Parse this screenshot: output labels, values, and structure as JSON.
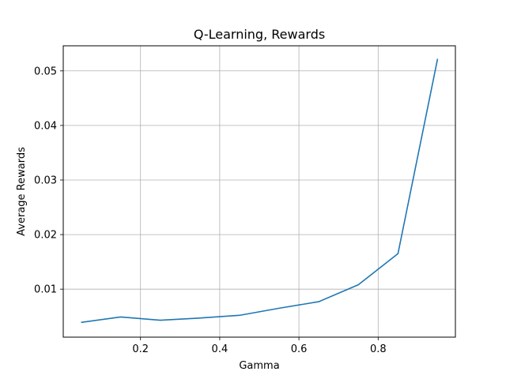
{
  "chart_data": {
    "type": "line",
    "title": "Q-Learning, Rewards",
    "xlabel": "Gamma",
    "ylabel": "Average Rewards",
    "xlim": [
      0.005,
      0.995
    ],
    "ylim": [
      0.0012,
      0.0546
    ],
    "x_ticks": [
      0.2,
      0.4,
      0.6,
      0.8
    ],
    "x_tick_labels": [
      "0.2",
      "0.4",
      "0.6",
      "0.8"
    ],
    "y_ticks": [
      0.01,
      0.02,
      0.03,
      0.04,
      0.05
    ],
    "y_tick_labels": [
      "0.01",
      "0.02",
      "0.03",
      "0.04",
      "0.05"
    ],
    "grid": true,
    "legend": false,
    "series": [
      {
        "color": "#1f77b4",
        "x": [
          0.05,
          0.15,
          0.25,
          0.35,
          0.45,
          0.55,
          0.65,
          0.75,
          0.85,
          0.95
        ],
        "y": [
          0.0039,
          0.0049,
          0.0043,
          0.0047,
          0.0052,
          0.0065,
          0.0077,
          0.0108,
          0.0165,
          0.0522
        ]
      }
    ]
  }
}
